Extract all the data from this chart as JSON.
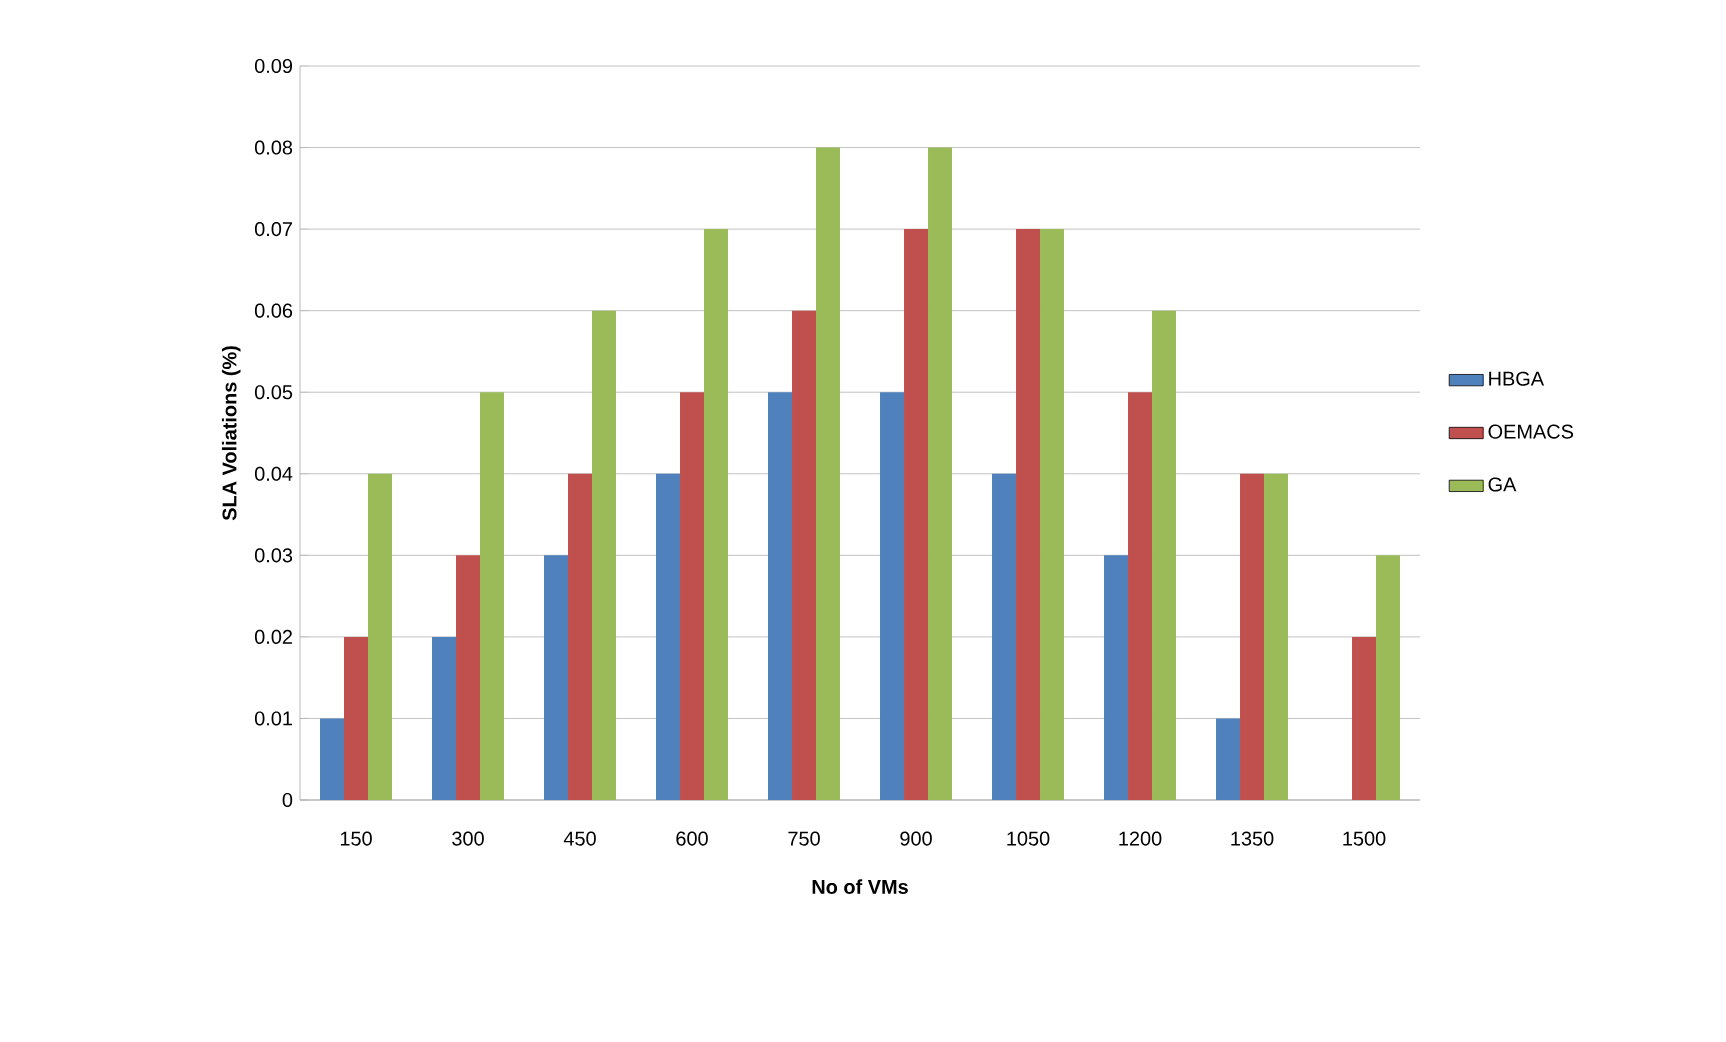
{
  "chart_data": {
    "type": "bar",
    "xlabel": "No of VMs",
    "ylabel": "SLA Voliations  (%)",
    "categories": [
      "150",
      "300",
      "450",
      "600",
      "750",
      "900",
      "1050",
      "1200",
      "1350",
      "1500"
    ],
    "series": [
      {
        "name": "HBGA",
        "color": "#4f81bd",
        "values": [
          0.01,
          0.02,
          0.03,
          0.04,
          0.05,
          0.05,
          0.04,
          0.03,
          0.01,
          0
        ]
      },
      {
        "name": "OEMACS",
        "color": "#c0504d",
        "values": [
          0.02,
          0.03,
          0.04,
          0.05,
          0.06,
          0.07,
          0.07,
          0.05,
          0.04,
          0.02
        ]
      },
      {
        "name": "GA",
        "color": "#9bbb59",
        "values": [
          0.04,
          0.05,
          0.06,
          0.07,
          0.08,
          0.08,
          0.07,
          0.06,
          0.04,
          0.03
        ]
      }
    ],
    "ylim": [
      0,
      0.09
    ],
    "yticks": [
      0,
      0.01,
      0.02,
      0.03,
      0.04,
      0.05,
      0.06,
      0.07,
      0.08,
      0.09
    ],
    "grid": "y",
    "legend": "right"
  }
}
